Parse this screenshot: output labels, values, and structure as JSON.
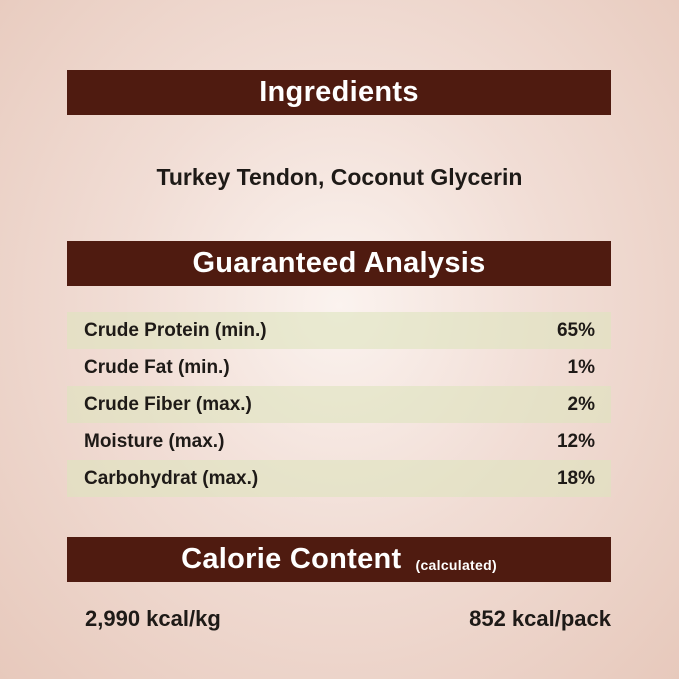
{
  "ingredients": {
    "title": "Ingredients",
    "text": "Turkey Tendon, Coconut Glycerin"
  },
  "analysis": {
    "title": "Guaranteed Analysis",
    "rows": [
      {
        "label": "Crude Protein (min.)",
        "value": "65%"
      },
      {
        "label": "Crude Fat (min.)",
        "value": "1%"
      },
      {
        "label": "Crude Fiber (max.)",
        "value": "2%"
      },
      {
        "label": "Moisture (max.)",
        "value": "12%"
      },
      {
        "label": "Carbohydrat (max.)",
        "value": "18%"
      }
    ]
  },
  "calorie": {
    "title": "Calorie Content",
    "note": "(calculated)",
    "per_kg": "2,990 kcal/kg",
    "per_pack": "852 kcal/pack"
  },
  "colors": {
    "banner": "#4f1b10",
    "row_shade": "#dee4be",
    "background": "#ecd3c8"
  }
}
